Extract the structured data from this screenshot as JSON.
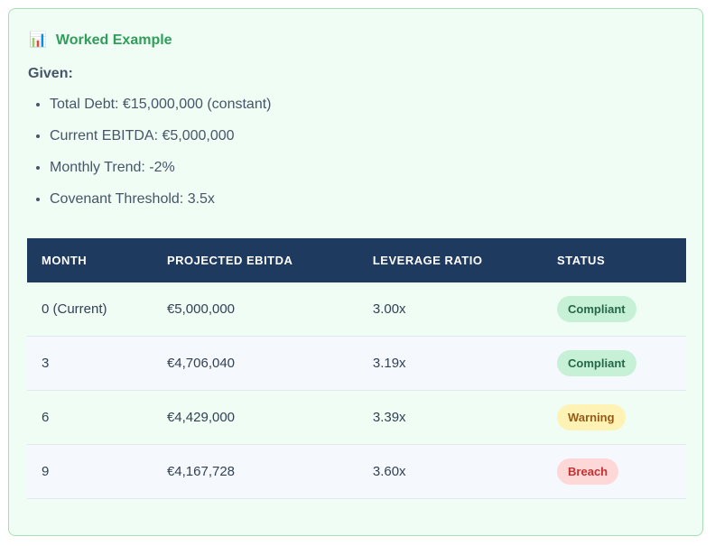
{
  "header": {
    "icon": "📊",
    "title": "Worked Example"
  },
  "given": {
    "label": "Given:",
    "items": [
      "Total Debt: €15,000,000 (constant)",
      "Current EBITDA: €5,000,000",
      "Monthly Trend: -2%",
      "Covenant Threshold: 3.5x"
    ]
  },
  "table": {
    "columns": [
      "MONTH",
      "PROJECTED EBITDA",
      "LEVERAGE RATIO",
      "STATUS"
    ],
    "rows": [
      [
        "0 (Current)",
        "€5,000,000",
        "3.00x",
        "Compliant"
      ],
      [
        "3",
        "€4,706,040",
        "3.19x",
        "Compliant"
      ],
      [
        "6",
        "€4,429,000",
        "3.39x",
        "Warning"
      ],
      [
        "9",
        "€4,167,728",
        "3.60x",
        "Breach"
      ]
    ]
  }
}
